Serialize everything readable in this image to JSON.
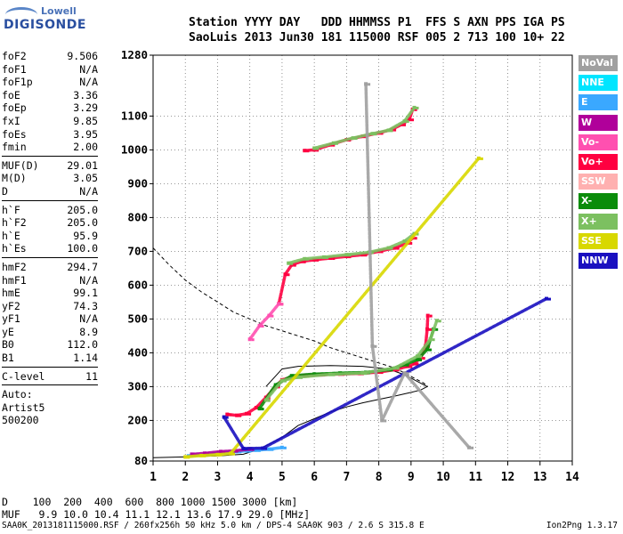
{
  "logo": {
    "line1": "Lowell",
    "line2": "DIGISONDE"
  },
  "header": {
    "labels": "Station YYYY DAY   DDD HHMMSS P1  FFS S AXN PPS IGA PS",
    "values": "SaoLuis 2013 Jun30 181 115000 RSF 005 2 713 100 10+ 22"
  },
  "params": {
    "group1": [
      [
        "foF2",
        "9.506"
      ],
      [
        "foF1",
        "N/A"
      ],
      [
        "foF1p",
        "N/A"
      ],
      [
        "foE",
        "3.36"
      ],
      [
        "foEp",
        "3.29"
      ],
      [
        "fxI",
        "9.85"
      ],
      [
        "foEs",
        "3.95"
      ],
      [
        "fmin",
        "2.00"
      ]
    ],
    "group2": [
      [
        "MUF(D)",
        "29.01"
      ],
      [
        "M(D)",
        "3.05"
      ],
      [
        "D",
        "N/A"
      ]
    ],
    "group3": [
      [
        "h`F",
        "205.0"
      ],
      [
        "h`F2",
        "205.0"
      ],
      [
        "h`E",
        "95.9"
      ],
      [
        "h`Es",
        "100.0"
      ]
    ],
    "group4": [
      [
        "hmF2",
        "294.7"
      ],
      [
        "hmF1",
        "N/A"
      ],
      [
        "hmE",
        "99.1"
      ],
      [
        "yF2",
        "74.3"
      ],
      [
        "yF1",
        "N/A"
      ],
      [
        "yE",
        "8.9"
      ],
      [
        "B0",
        "112.0"
      ],
      [
        "B1",
        "1.14"
      ]
    ],
    "group5": [
      [
        "C-level",
        "11"
      ]
    ],
    "auto": [
      "Auto:",
      "Artist5",
      "500200"
    ]
  },
  "legend": [
    {
      "label": "NoVal",
      "color": "#a0a0a0"
    },
    {
      "label": "NNE",
      "color": "#00e5ff"
    },
    {
      "label": "E",
      "color": "#3aa8ff"
    },
    {
      "label": "W",
      "color": "#b0009a"
    },
    {
      "label": "Vo-",
      "color": "#ff50b0"
    },
    {
      "label": "Vo+",
      "color": "#ff0040"
    },
    {
      "label": "SSW",
      "color": "#ffb0b0"
    },
    {
      "label": "X-",
      "color": "#0a8c0a"
    },
    {
      "label": "X+",
      "color": "#7cc060"
    },
    {
      "label": "SSE",
      "color": "#d8d800"
    },
    {
      "label": "NNW",
      "color": "#1a10c0"
    }
  ],
  "bottom": {
    "d_row": "D    100  200  400  600  800 1000 1500 3000 [km]",
    "muf_row": "MUF   9.9 10.0 10.4 11.1 12.1 13.6 17.9 29.0 [MHz]",
    "footer": "SAA0K_2013181115000.RSF / 260fx256h 50 kHz 5.0 km / DPS-4 SAA0K 903 / 2.6 S 315.8 E",
    "version": "Ion2Png 1.3.17"
  },
  "chart_data": {
    "type": "scatter",
    "xlim": [
      1,
      14
    ],
    "ylim": [
      80,
      1280
    ],
    "x_ticks": [
      1,
      2,
      3,
      4,
      5,
      6,
      7,
      8,
      9,
      10,
      11,
      12,
      13,
      14
    ],
    "y_ticks": [
      80,
      200,
      300,
      400,
      500,
      600,
      700,
      800,
      900,
      1000,
      1100,
      1280
    ],
    "grid": true,
    "series": [
      {
        "color": "#ff0040",
        "points": [
          [
            3.3,
            218
          ],
          [
            3.6,
            215
          ],
          [
            3.9,
            220
          ],
          [
            4.2,
            238
          ],
          [
            4.5,
            268
          ],
          [
            4.8,
            300
          ],
          [
            5.0,
            320
          ],
          [
            5.3,
            328
          ],
          [
            5.7,
            333
          ],
          [
            6.2,
            335
          ],
          [
            6.8,
            337
          ],
          [
            7.4,
            339
          ],
          [
            8.0,
            343
          ],
          [
            8.5,
            350
          ],
          [
            8.9,
            360
          ],
          [
            9.1,
            368
          ],
          [
            9.3,
            385
          ],
          [
            9.45,
            420
          ],
          [
            9.5,
            470
          ],
          [
            9.52,
            510
          ]
        ]
      },
      {
        "color": "#0a8c0a",
        "points": [
          [
            4.3,
            235
          ],
          [
            4.8,
            305
          ],
          [
            5.3,
            332
          ],
          [
            6.0,
            337
          ],
          [
            6.8,
            340
          ],
          [
            7.6,
            342
          ],
          [
            8.3,
            350
          ],
          [
            8.8,
            365
          ],
          [
            9.2,
            380
          ],
          [
            9.5,
            410
          ],
          [
            9.7,
            470
          ]
        ]
      },
      {
        "color": "#7cc060",
        "points": [
          [
            4.5,
            260
          ],
          [
            5.0,
            318
          ],
          [
            5.5,
            328
          ],
          [
            6.5,
            336
          ],
          [
            7.5,
            340
          ],
          [
            8.5,
            355
          ],
          [
            9.2,
            390
          ],
          [
            9.6,
            440
          ],
          [
            9.8,
            495
          ]
        ]
      },
      {
        "color": "#ff0040",
        "points": [
          [
            4.9,
            545
          ],
          [
            5.1,
            632
          ],
          [
            5.3,
            660
          ],
          [
            5.6,
            670
          ],
          [
            6.0,
            675
          ],
          [
            6.5,
            680
          ],
          [
            7.0,
            685
          ],
          [
            7.5,
            690
          ],
          [
            8.0,
            700
          ],
          [
            8.5,
            710
          ],
          [
            8.9,
            725
          ],
          [
            9.05,
            740
          ]
        ]
      },
      {
        "color": "#7cc060",
        "points": [
          [
            5.2,
            665
          ],
          [
            5.7,
            678
          ],
          [
            6.3,
            683
          ],
          [
            7.0,
            690
          ],
          [
            7.7,
            697
          ],
          [
            8.3,
            710
          ],
          [
            8.8,
            730
          ],
          [
            9.1,
            752
          ]
        ]
      },
      {
        "color": "#ff0040",
        "points": [
          [
            5.7,
            998
          ],
          [
            6.0,
            1000
          ],
          [
            6.5,
            1015
          ],
          [
            7.0,
            1030
          ],
          [
            7.5,
            1040
          ],
          [
            8.0,
            1050
          ],
          [
            8.4,
            1060
          ],
          [
            8.7,
            1075
          ],
          [
            8.95,
            1090
          ],
          [
            9.05,
            1120
          ]
        ]
      },
      {
        "color": "#7cc060",
        "points": [
          [
            6.0,
            1005
          ],
          [
            6.6,
            1020
          ],
          [
            7.2,
            1035
          ],
          [
            7.8,
            1048
          ],
          [
            8.3,
            1058
          ],
          [
            8.8,
            1085
          ],
          [
            9.1,
            1125
          ]
        ]
      },
      {
        "color": "#ff50b0",
        "points": [
          [
            4.0,
            440
          ],
          [
            4.3,
            480
          ],
          [
            4.6,
            510
          ],
          [
            4.9,
            545
          ]
        ]
      },
      {
        "color": "#3aa8ff",
        "points": [
          [
            2.1,
            95
          ],
          [
            2.4,
            97
          ],
          [
            2.7,
            100
          ],
          [
            3.0,
            103
          ],
          [
            3.3,
            105
          ],
          [
            3.6,
            108
          ],
          [
            3.9,
            110
          ],
          [
            4.2,
            112
          ],
          [
            4.6,
            115
          ],
          [
            5.0,
            120
          ]
        ]
      },
      {
        "color": "#b0009a",
        "points": [
          [
            2.2,
            100
          ],
          [
            2.6,
            103
          ],
          [
            3.1,
            108
          ],
          [
            3.5,
            110
          ],
          [
            4.0,
            115
          ]
        ]
      },
      {
        "color": "#d8d800",
        "points": [
          [
            2.0,
            92
          ],
          [
            2.5,
            96
          ],
          [
            3.0,
            99
          ],
          [
            3.4,
            102
          ],
          [
            11.1,
            975
          ]
        ]
      },
      {
        "color": "#1a10c0",
        "points": [
          [
            3.2,
            210
          ],
          [
            3.8,
            117
          ],
          [
            4.4,
            118
          ],
          [
            13.2,
            560
          ]
        ]
      },
      {
        "color": "#a0a0a0",
        "points": [
          [
            7.6,
            1195
          ],
          [
            7.8,
            420
          ],
          [
            8.1,
            200
          ],
          [
            8.8,
            340
          ],
          [
            10.8,
            120
          ]
        ]
      }
    ],
    "lines": [
      {
        "style": "dashed",
        "points": [
          [
            1.0,
            710
          ],
          [
            1.5,
            660
          ],
          [
            2.0,
            615
          ],
          [
            2.5,
            580
          ],
          [
            3.0,
            550
          ],
          [
            3.5,
            520
          ],
          [
            4.0,
            500
          ],
          [
            4.5,
            480
          ],
          [
            5.0,
            465
          ],
          [
            5.5,
            450
          ],
          [
            6.0,
            435
          ],
          [
            6.5,
            415
          ],
          [
            7.0,
            400
          ],
          [
            7.5,
            385
          ],
          [
            8.0,
            370
          ],
          [
            8.5,
            355
          ],
          [
            9.0,
            330
          ],
          [
            9.4,
            310
          ],
          [
            9.52,
            300
          ]
        ]
      },
      {
        "style": "solid",
        "points": [
          [
            1.0,
            90
          ],
          [
            2.0,
            92
          ],
          [
            3.0,
            95
          ],
          [
            3.8,
            100
          ],
          [
            4.3,
            115
          ],
          [
            5.0,
            150
          ],
          [
            5.5,
            185
          ],
          [
            6.0,
            205
          ],
          [
            6.5,
            225
          ],
          [
            7.0,
            240
          ],
          [
            7.5,
            252
          ],
          [
            8.0,
            262
          ],
          [
            8.5,
            272
          ],
          [
            9.0,
            283
          ],
          [
            9.3,
            290
          ],
          [
            9.5,
            300
          ],
          [
            9.3,
            310
          ],
          [
            8.8,
            335
          ],
          [
            8.3,
            352
          ],
          [
            7.5,
            360
          ],
          [
            6.5,
            362
          ],
          [
            5.5,
            360
          ],
          [
            5.0,
            352
          ],
          [
            4.5,
            300
          ]
        ]
      }
    ]
  }
}
